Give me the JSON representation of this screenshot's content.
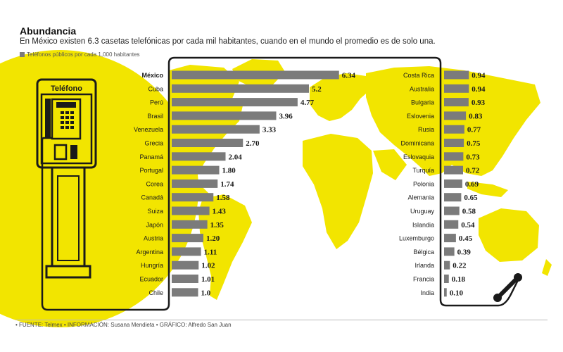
{
  "header": {
    "title": "Abundancia",
    "subtitle": "En México existen 6.3 casetas telefónicas por cada mil habitantes, cuando en el mundo el promedio es de solo una.",
    "legend_label": "Teléfonos públicos por cada 1,000 habitantes"
  },
  "illustration": {
    "phone_label": "Teléfono"
  },
  "footer": {
    "source": "• FUENTE: Telmex • INFORMACIÓN: Susana Mendieta • GRÁFICO: Alfredo San Juan"
  },
  "colors": {
    "accent": "#f2e500",
    "bar": "#7b7b7b",
    "outline": "#1a1a1a"
  },
  "chart_data": [
    {
      "type": "bar",
      "orientation": "horizontal",
      "categories": [
        "México",
        "Cuba",
        "Perú",
        "Brasil",
        "Venezuela",
        "Grecia",
        "Panamá",
        "Portugal",
        "Corea",
        "Canadá",
        "Suiza",
        "Japón",
        "Austria",
        "Argentina",
        "Hungría",
        "Ecuador",
        "Chile"
      ],
      "values": [
        6.34,
        5.2,
        4.77,
        3.96,
        3.33,
        2.7,
        2.04,
        1.8,
        1.74,
        1.58,
        1.43,
        1.35,
        1.2,
        1.11,
        1.02,
        1.01,
        1.0
      ],
      "value_labels": [
        "6.34",
        "5.2",
        "4.77",
        "3.96",
        "3.33",
        "2.70",
        "2.04",
        "1.80",
        "1.74",
        "1.58",
        "1.43",
        "1.35",
        "1.20",
        "1.11",
        "1.02",
        "1.01",
        "1.0"
      ],
      "highlight": "México"
    },
    {
      "type": "bar",
      "orientation": "horizontal",
      "categories": [
        "Costa Rica",
        "Australia",
        "Bulgaria",
        "Eslovenia",
        "Rusia",
        "Dominicana",
        "Eslovaquia",
        "Turquía",
        "Polonia",
        "Alemania",
        "Uruguay",
        "Islandia",
        "Luxemburgo",
        "Bélgica",
        "Irlanda",
        "Francia",
        "India"
      ],
      "values": [
        0.94,
        0.94,
        0.93,
        0.83,
        0.77,
        0.75,
        0.73,
        0.72,
        0.69,
        0.65,
        0.58,
        0.54,
        0.45,
        0.39,
        0.22,
        0.18,
        0.1
      ],
      "value_labels": [
        "0.94",
        "0.94",
        "0.93",
        "0.83",
        "0.77",
        "0.75",
        "0.73",
        "0.72",
        "0.69",
        "0.65",
        "0.58",
        "0.54",
        "0.45",
        "0.39",
        "0.22",
        "0.18",
        "0.10"
      ]
    }
  ]
}
